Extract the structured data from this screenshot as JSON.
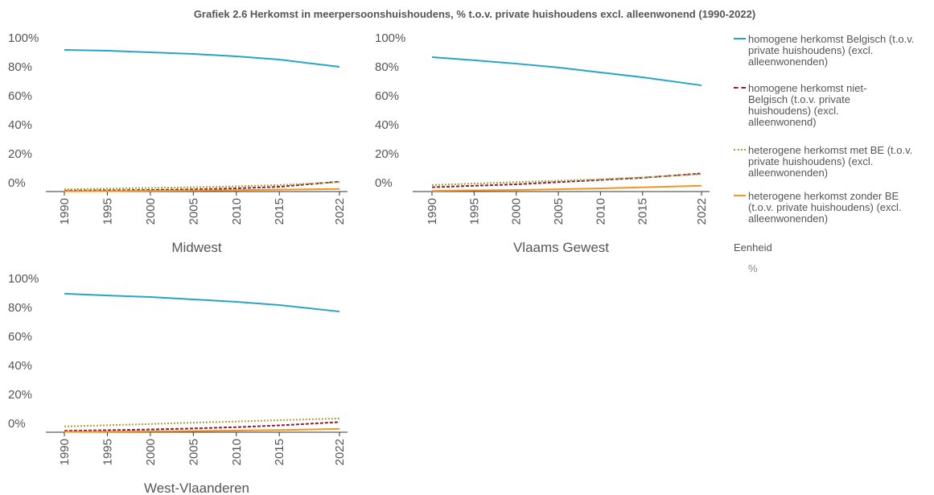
{
  "title": "Grafiek 2.6 Herkomst in meerpersoonshuishoudens, % t.o.v. private huishoudens excl. alleenwonend (1990-2022)",
  "unit_note": {
    "title": "Eenheid",
    "text": "%"
  },
  "chart_data": [
    {
      "type": "line",
      "subtitle": "Midwest",
      "x": [
        1990,
        1995,
        2000,
        2005,
        2010,
        2015,
        2022
      ],
      "xlim": [
        1990,
        2022
      ],
      "xticks": [
        1990,
        1995,
        2000,
        2005,
        2010,
        2015,
        2022
      ],
      "ylim": [
        0,
        100
      ],
      "yticks": [
        {
          "value": 0,
          "label": "0%"
        },
        {
          "value": 20,
          "label": "20%"
        },
        {
          "value": 40,
          "label": "40%"
        },
        {
          "value": 60,
          "label": "60%"
        },
        {
          "value": 80,
          "label": "80%"
        },
        {
          "value": 100,
          "label": "100%"
        }
      ],
      "series": [
        {
          "name": "homogene herkomst Belgisch (t.o.v. private huishoudens) (excl. alleenwonenden)",
          "color": "#26a5c9",
          "dash": "solid",
          "values": [
            97.8,
            97.2,
            96.1,
            95,
            93.3,
            91.1,
            86.1
          ]
        },
        {
          "name": "homogene herkomst niet-Belgisch (t.o.v. private huishoudens) (excl. alleenwonend)",
          "color": "#8b1f3a",
          "dash": "dashed",
          "values": [
            0.6,
            0.8,
            1.1,
            1.5,
            2.2,
            3.3,
            6.9
          ]
        },
        {
          "name": "heterogene herkomst met BE (t.o.v. private huishoudens) (excl. alleenwonenden)",
          "color": "#a3a33b",
          "dash": "dotted",
          "values": [
            1.5,
            2,
            2.5,
            3,
            3.6,
            4.5,
            6.5
          ]
        },
        {
          "name": "heterogene herkomst zonder BE (t.o.v. private huishoudens) (excl. alleenwonenden)",
          "color": "#f4951f",
          "dash": "solid",
          "values": [
            0.2,
            0.3,
            0.5,
            0.7,
            1,
            1.3,
            1.8
          ]
        }
      ]
    },
    {
      "type": "line",
      "subtitle": "Vlaams Gewest",
      "x": [
        1990,
        1995,
        2000,
        2005,
        2010,
        2015,
        2022
      ],
      "xlim": [
        1990,
        2022
      ],
      "xticks": [
        1990,
        1995,
        2000,
        2005,
        2010,
        2015,
        2022
      ],
      "ylim": [
        0,
        100
      ],
      "yticks": [
        {
          "value": 0,
          "label": "0%"
        },
        {
          "value": 20,
          "label": "20%"
        },
        {
          "value": 40,
          "label": "40%"
        },
        {
          "value": 60,
          "label": "60%"
        },
        {
          "value": 80,
          "label": "80%"
        },
        {
          "value": 100,
          "label": "100%"
        }
      ],
      "series": [
        {
          "name": "homogene herkomst Belgisch (t.o.v. private huishoudens) (excl. alleenwonenden)",
          "color": "#26a5c9",
          "dash": "solid",
          "values": [
            92.8,
            90.6,
            88.3,
            85.6,
            82.2,
            78.9,
            73.3
          ]
        },
        {
          "name": "homogene herkomst niet-Belgisch (t.o.v. private huishoudens) (excl. alleenwonend)",
          "color": "#8b1f3a",
          "dash": "dashed",
          "values": [
            3,
            4,
            5,
            6.5,
            8,
            9.5,
            12.5
          ]
        },
        {
          "name": "heterogene herkomst met BE (t.o.v. private huishoudens) (excl. alleenwonenden)",
          "color": "#a3a33b",
          "dash": "dotted",
          "values": [
            4.5,
            5.5,
            6.5,
            7.5,
            8.5,
            9.8,
            12
          ]
        },
        {
          "name": "heterogene herkomst zonder BE (t.o.v. private huishoudens) (excl. alleenwonenden)",
          "color": "#f4951f",
          "dash": "solid",
          "values": [
            0.5,
            0.8,
            1.1,
            1.6,
            2.2,
            2.9,
            4
          ]
        }
      ]
    },
    {
      "type": "line",
      "subtitle": "West-Vlaanderen",
      "x": [
        1990,
        1995,
        2000,
        2005,
        2010,
        2015,
        2022
      ],
      "xlim": [
        1990,
        2022
      ],
      "xticks": [
        1990,
        1995,
        2000,
        2005,
        2010,
        2015,
        2022
      ],
      "ylim": [
        0,
        100
      ],
      "yticks": [
        {
          "value": 0,
          "label": "0%"
        },
        {
          "value": 20,
          "label": "20%"
        },
        {
          "value": 40,
          "label": "40%"
        },
        {
          "value": 60,
          "label": "60%"
        },
        {
          "value": 80,
          "label": "80%"
        },
        {
          "value": 100,
          "label": "100%"
        }
      ],
      "series": [
        {
          "name": "homogene herkomst Belgisch (t.o.v. private huishoudens) (excl. alleenwonenden)",
          "color": "#26a5c9",
          "dash": "solid",
          "values": [
            95.6,
            94.4,
            93.3,
            91.7,
            90,
            87.8,
            83.3
          ]
        },
        {
          "name": "homogene herkomst niet-Belgisch (t.o.v. private huishoudens) (excl. alleenwonend)",
          "color": "#8b1f3a",
          "dash": "dashed",
          "values": [
            1,
            1.4,
            1.9,
            2.6,
            3.5,
            4.7,
            7
          ]
        },
        {
          "name": "heterogene herkomst met BE (t.o.v. private huishoudens) (excl. alleenwonenden)",
          "color": "#a3a33b",
          "dash": "dotted",
          "values": [
            4,
            4.8,
            5.7,
            6.6,
            7.4,
            8.3,
            9.5
          ]
        },
        {
          "name": "heterogene herkomst zonder BE (t.o.v. private huishoudens) (excl. alleenwonenden)",
          "color": "#f4951f",
          "dash": "solid",
          "values": [
            0.3,
            0.4,
            0.6,
            0.8,
            1.1,
            1.5,
            2.3
          ]
        }
      ]
    }
  ]
}
